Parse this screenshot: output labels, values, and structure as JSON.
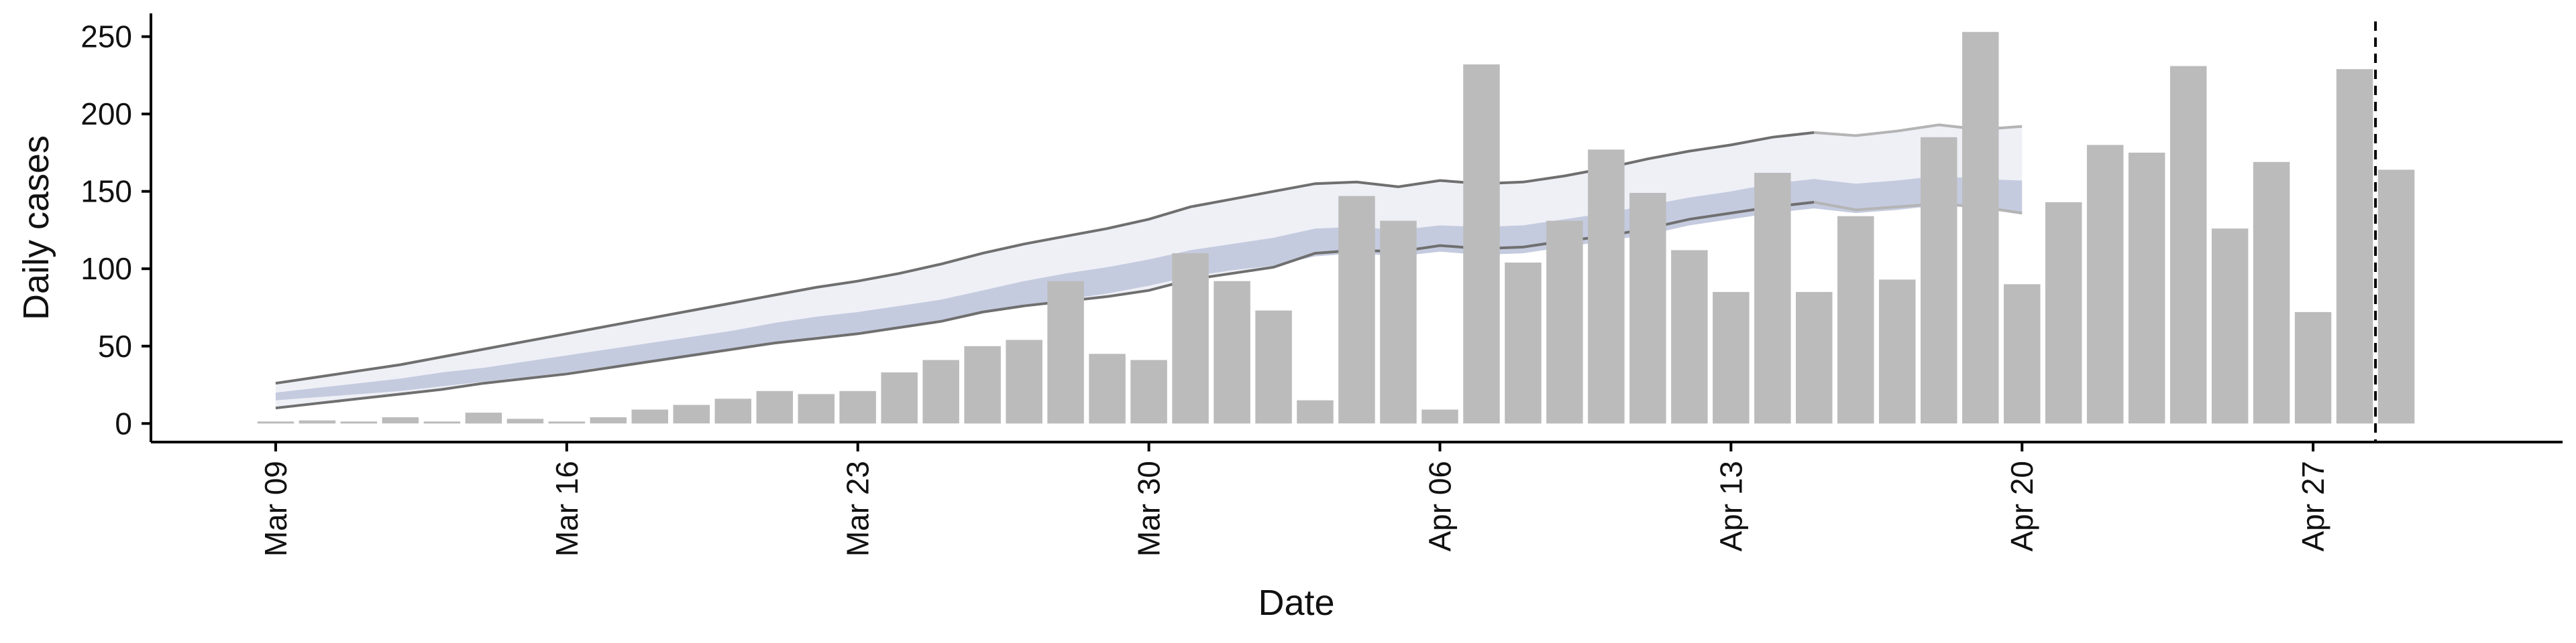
{
  "chart_data": {
    "type": "bar",
    "title": "",
    "xlabel": "Date",
    "ylabel": "Daily cases",
    "x_tick_labels": [
      "Mar 09",
      "Mar 16",
      "Mar 23",
      "Mar 30",
      "Apr 06",
      "Apr 13",
      "Apr 20",
      "Apr 27"
    ],
    "y_ticks": [
      0,
      50,
      100,
      150,
      200,
      250
    ],
    "ylim": [
      -12,
      265
    ],
    "xlim": [
      "2020-03-06",
      "2020-05-03"
    ],
    "grid": false,
    "legend": "none",
    "cutoff_date": "2020-04-29",
    "colors": {
      "bars": "#bbbbbb",
      "band_outer": "#eef0f6",
      "band_inner": "#c5cbdf",
      "band_edge_dark": "#6f6f6f",
      "band_edge_light": "#b4b4b4",
      "axis": "#000000",
      "cutoff_line": "#000000"
    },
    "bars": {
      "dates": [
        "2020-03-09",
        "2020-03-10",
        "2020-03-11",
        "2020-03-12",
        "2020-03-13",
        "2020-03-14",
        "2020-03-15",
        "2020-03-16",
        "2020-03-17",
        "2020-03-18",
        "2020-03-19",
        "2020-03-20",
        "2020-03-21",
        "2020-03-22",
        "2020-03-23",
        "2020-03-24",
        "2020-03-25",
        "2020-03-26",
        "2020-03-27",
        "2020-03-28",
        "2020-03-29",
        "2020-03-30",
        "2020-03-31",
        "2020-04-01",
        "2020-04-02",
        "2020-04-03",
        "2020-04-04",
        "2020-04-05",
        "2020-04-06",
        "2020-04-07",
        "2020-04-08",
        "2020-04-09",
        "2020-04-10",
        "2020-04-11",
        "2020-04-12",
        "2020-04-13",
        "2020-04-14",
        "2020-04-15",
        "2020-04-16",
        "2020-04-17",
        "2020-04-18",
        "2020-04-19",
        "2020-04-20",
        "2020-04-21",
        "2020-04-22",
        "2020-04-23",
        "2020-04-24",
        "2020-04-25",
        "2020-04-26",
        "2020-04-27",
        "2020-04-28",
        "2020-04-29"
      ],
      "values": [
        1,
        2,
        0,
        4,
        0,
        7,
        3,
        1,
        4,
        9,
        12,
        16,
        21,
        19,
        21,
        33,
        41,
        50,
        54,
        92,
        45,
        41,
        110,
        92,
        73,
        15,
        147,
        131,
        9,
        232,
        104,
        131,
        177,
        149,
        112,
        85,
        162,
        85,
        134,
        93,
        185,
        253,
        90,
        143,
        180,
        175,
        231,
        126,
        169,
        72,
        229,
        164
      ]
    },
    "band": {
      "dates": [
        "2020-03-09",
        "2020-03-10",
        "2020-03-11",
        "2020-03-12",
        "2020-03-13",
        "2020-03-14",
        "2020-03-15",
        "2020-03-16",
        "2020-03-17",
        "2020-03-18",
        "2020-03-19",
        "2020-03-20",
        "2020-03-21",
        "2020-03-22",
        "2020-03-23",
        "2020-03-24",
        "2020-03-25",
        "2020-03-26",
        "2020-03-27",
        "2020-03-28",
        "2020-03-29",
        "2020-03-30",
        "2020-03-31",
        "2020-04-01",
        "2020-04-02",
        "2020-04-03",
        "2020-04-04",
        "2020-04-05",
        "2020-04-06",
        "2020-04-07",
        "2020-04-08",
        "2020-04-09",
        "2020-04-10",
        "2020-04-11",
        "2020-04-12",
        "2020-04-13",
        "2020-04-14",
        "2020-04-15",
        "2020-04-16",
        "2020-04-17",
        "2020-04-18",
        "2020-04-19",
        "2020-04-20"
      ],
      "outer_upper": [
        26,
        30,
        34,
        38,
        43,
        48,
        53,
        58,
        63,
        68,
        73,
        78,
        83,
        88,
        92,
        97,
        103,
        110,
        116,
        121,
        126,
        132,
        140,
        145,
        150,
        155,
        156,
        153,
        157,
        155,
        156,
        160,
        165,
        171,
        176,
        180,
        185,
        188,
        186,
        189,
        193,
        190,
        192
      ],
      "inner_upper": [
        20,
        23,
        26,
        29,
        33,
        36,
        40,
        44,
        48,
        52,
        56,
        60,
        65,
        69,
        72,
        76,
        80,
        86,
        92,
        97,
        101,
        106,
        112,
        116,
        120,
        126,
        127,
        125,
        128,
        127,
        128,
        132,
        136,
        141,
        146,
        150,
        155,
        158,
        155,
        157,
        160,
        158,
        157
      ],
      "inner_lower": [
        15,
        17,
        19,
        21,
        24,
        27,
        30,
        33,
        37,
        40,
        44,
        48,
        52,
        56,
        58,
        62,
        66,
        72,
        76,
        80,
        84,
        89,
        95,
        99,
        102,
        108,
        110,
        108,
        111,
        109,
        110,
        114,
        118,
        122,
        128,
        132,
        136,
        139,
        136,
        138,
        141,
        139,
        135
      ],
      "outer_lower": [
        10,
        13,
        16,
        19,
        22,
        26,
        29,
        32,
        36,
        40,
        44,
        48,
        52,
        55,
        58,
        62,
        66,
        72,
        76,
        79,
        82,
        86,
        93,
        97,
        101,
        110,
        112,
        111,
        115,
        113,
        114,
        118,
        121,
        126,
        132,
        136,
        140,
        143,
        138,
        140,
        142,
        140,
        136
      ]
    }
  }
}
